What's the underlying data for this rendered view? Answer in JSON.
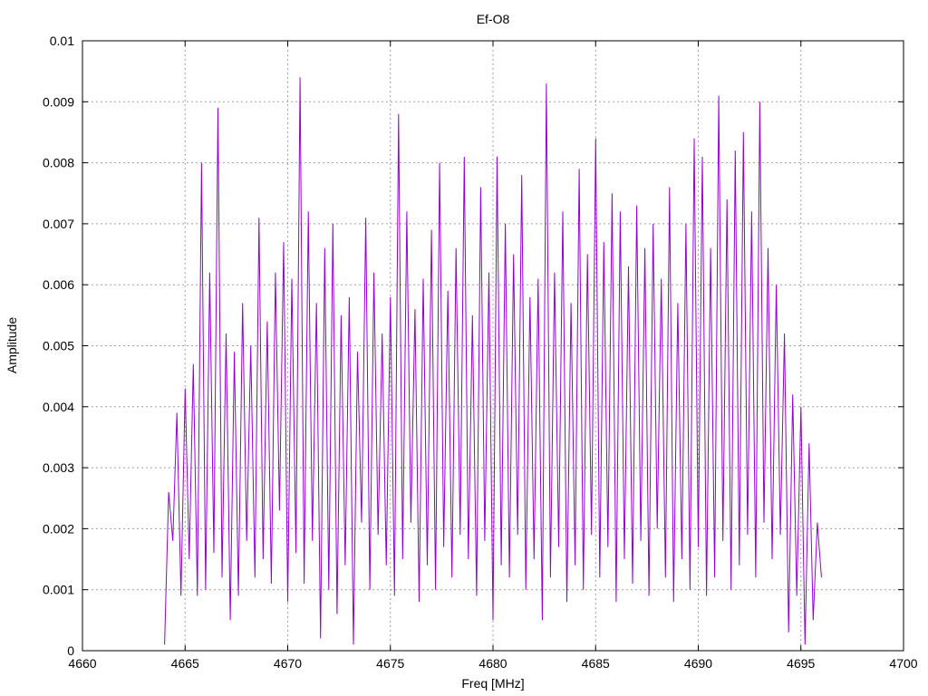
{
  "chart_data": {
    "type": "line",
    "title": "Ef-O8",
    "xlabel": "Freq [MHz]",
    "ylabel": "Amplitude",
    "xlim": [
      4660,
      4700
    ],
    "ylim": [
      0,
      0.01
    ],
    "x_ticks": [
      "4660",
      "4665",
      "4670",
      "4675",
      "4680",
      "4685",
      "4690",
      "4695",
      "4700"
    ],
    "y_ticks": [
      "0",
      "0.001",
      "0.002",
      "0.003",
      "0.004",
      "0.005",
      "0.006",
      "0.007",
      "0.008",
      "0.009",
      "0.01"
    ],
    "grid": true,
    "series_color": "#9400d3",
    "series": [
      {
        "x": [
          4664.0,
          4664.2,
          4664.4,
          4664.6,
          4664.8,
          4665.0,
          4665.2,
          4665.4,
          4665.6,
          4665.8,
          4666.0,
          4666.2,
          4666.4,
          4666.6,
          4666.8,
          4667.0,
          4667.2,
          4667.4,
          4667.6,
          4667.8,
          4668.0,
          4668.2,
          4668.4,
          4668.6,
          4668.8,
          4669.0,
          4669.2,
          4669.4,
          4669.6,
          4669.8,
          4670.0,
          4670.2,
          4670.4,
          4670.6,
          4670.8,
          4671.0,
          4671.2,
          4671.4,
          4671.6,
          4671.8,
          4672.0,
          4672.2,
          4672.4,
          4672.6,
          4672.8,
          4673.0,
          4673.2,
          4673.4,
          4673.6,
          4673.8,
          4674.0,
          4674.2,
          4674.4,
          4674.6,
          4674.8,
          4675.0,
          4675.2,
          4675.4,
          4675.6,
          4675.8,
          4676.0,
          4676.2,
          4676.4,
          4676.6,
          4676.8,
          4677.0,
          4677.2,
          4677.4,
          4677.6,
          4677.8,
          4678.0,
          4678.2,
          4678.4,
          4678.6,
          4678.8,
          4679.0,
          4679.2,
          4679.4,
          4679.6,
          4679.8,
          4680.0,
          4680.2,
          4680.4,
          4680.6,
          4680.8,
          4681.0,
          4681.2,
          4681.4,
          4681.6,
          4681.8,
          4682.0,
          4682.2,
          4682.4,
          4682.6,
          4682.8,
          4683.0,
          4683.2,
          4683.4,
          4683.6,
          4683.8,
          4684.0,
          4684.2,
          4684.4,
          4684.6,
          4684.8,
          4685.0,
          4685.2,
          4685.4,
          4685.6,
          4685.8,
          4686.0,
          4686.2,
          4686.4,
          4686.6,
          4686.8,
          4687.0,
          4687.2,
          4687.4,
          4687.6,
          4687.8,
          4688.0,
          4688.2,
          4688.4,
          4688.6,
          4688.8,
          4689.0,
          4689.2,
          4689.4,
          4689.6,
          4689.8,
          4690.0,
          4690.2,
          4690.4,
          4690.6,
          4690.8,
          4691.0,
          4691.2,
          4691.4,
          4691.6,
          4691.8,
          4692.0,
          4692.2,
          4692.4,
          4692.6,
          4692.8,
          4693.0,
          4693.2,
          4693.4,
          4693.6,
          4693.8,
          4694.0,
          4694.2,
          4694.4,
          4694.6,
          4694.8,
          4695.0,
          4695.2,
          4695.4,
          4695.6,
          4695.8,
          4696.0
        ],
        "y": [
          0.0001,
          0.0026,
          0.0018,
          0.0039,
          0.0009,
          0.0043,
          0.0015,
          0.0047,
          0.0009,
          0.008,
          0.001,
          0.0062,
          0.0016,
          0.0089,
          0.0012,
          0.0052,
          0.0005,
          0.0049,
          0.0009,
          0.0057,
          0.0018,
          0.005,
          0.0012,
          0.0071,
          0.0015,
          0.0054,
          0.0011,
          0.0062,
          0.0023,
          0.0067,
          0.0008,
          0.0061,
          0.0016,
          0.0094,
          0.0011,
          0.0072,
          0.0018,
          0.0057,
          0.0002,
          0.0066,
          0.001,
          0.007,
          0.0006,
          0.0055,
          0.0014,
          0.0058,
          0.0001,
          0.0049,
          0.0021,
          0.0071,
          0.001,
          0.0062,
          0.0019,
          0.0052,
          0.0014,
          0.0058,
          0.0009,
          0.0088,
          0.0015,
          0.0072,
          0.0021,
          0.0056,
          0.0008,
          0.0061,
          0.0014,
          0.0069,
          0.001,
          0.008,
          0.0017,
          0.0059,
          0.0012,
          0.0066,
          0.0019,
          0.0081,
          0.0015,
          0.0055,
          0.0009,
          0.0076,
          0.0018,
          0.0062,
          0.0005,
          0.0081,
          0.0014,
          0.007,
          0.0012,
          0.0065,
          0.0019,
          0.0078,
          0.001,
          0.0058,
          0.0015,
          0.0061,
          0.0005,
          0.0093,
          0.0012,
          0.0062,
          0.0017,
          0.0072,
          0.0008,
          0.0057,
          0.0014,
          0.0079,
          0.001,
          0.0065,
          0.0019,
          0.0084,
          0.0012,
          0.0067,
          0.0017,
          0.0075,
          0.0008,
          0.0072,
          0.0015,
          0.0063,
          0.0011,
          0.0073,
          0.0018,
          0.0066,
          0.0009,
          0.007,
          0.002,
          0.0061,
          0.0012,
          0.0076,
          0.0008,
          0.0057,
          0.0015,
          0.007,
          0.001,
          0.0084,
          0.0017,
          0.0081,
          0.0009,
          0.0066,
          0.0012,
          0.0091,
          0.0018,
          0.0074,
          0.001,
          0.0082,
          0.0014,
          0.0085,
          0.0019,
          0.0072,
          0.0012,
          0.009,
          0.0021,
          0.0066,
          0.0015,
          0.006,
          0.0019,
          0.0052,
          0.0003,
          0.0042,
          0.0009,
          0.004,
          0.0001,
          0.0034,
          0.0005,
          0.0021,
          0.0012
        ]
      }
    ]
  }
}
